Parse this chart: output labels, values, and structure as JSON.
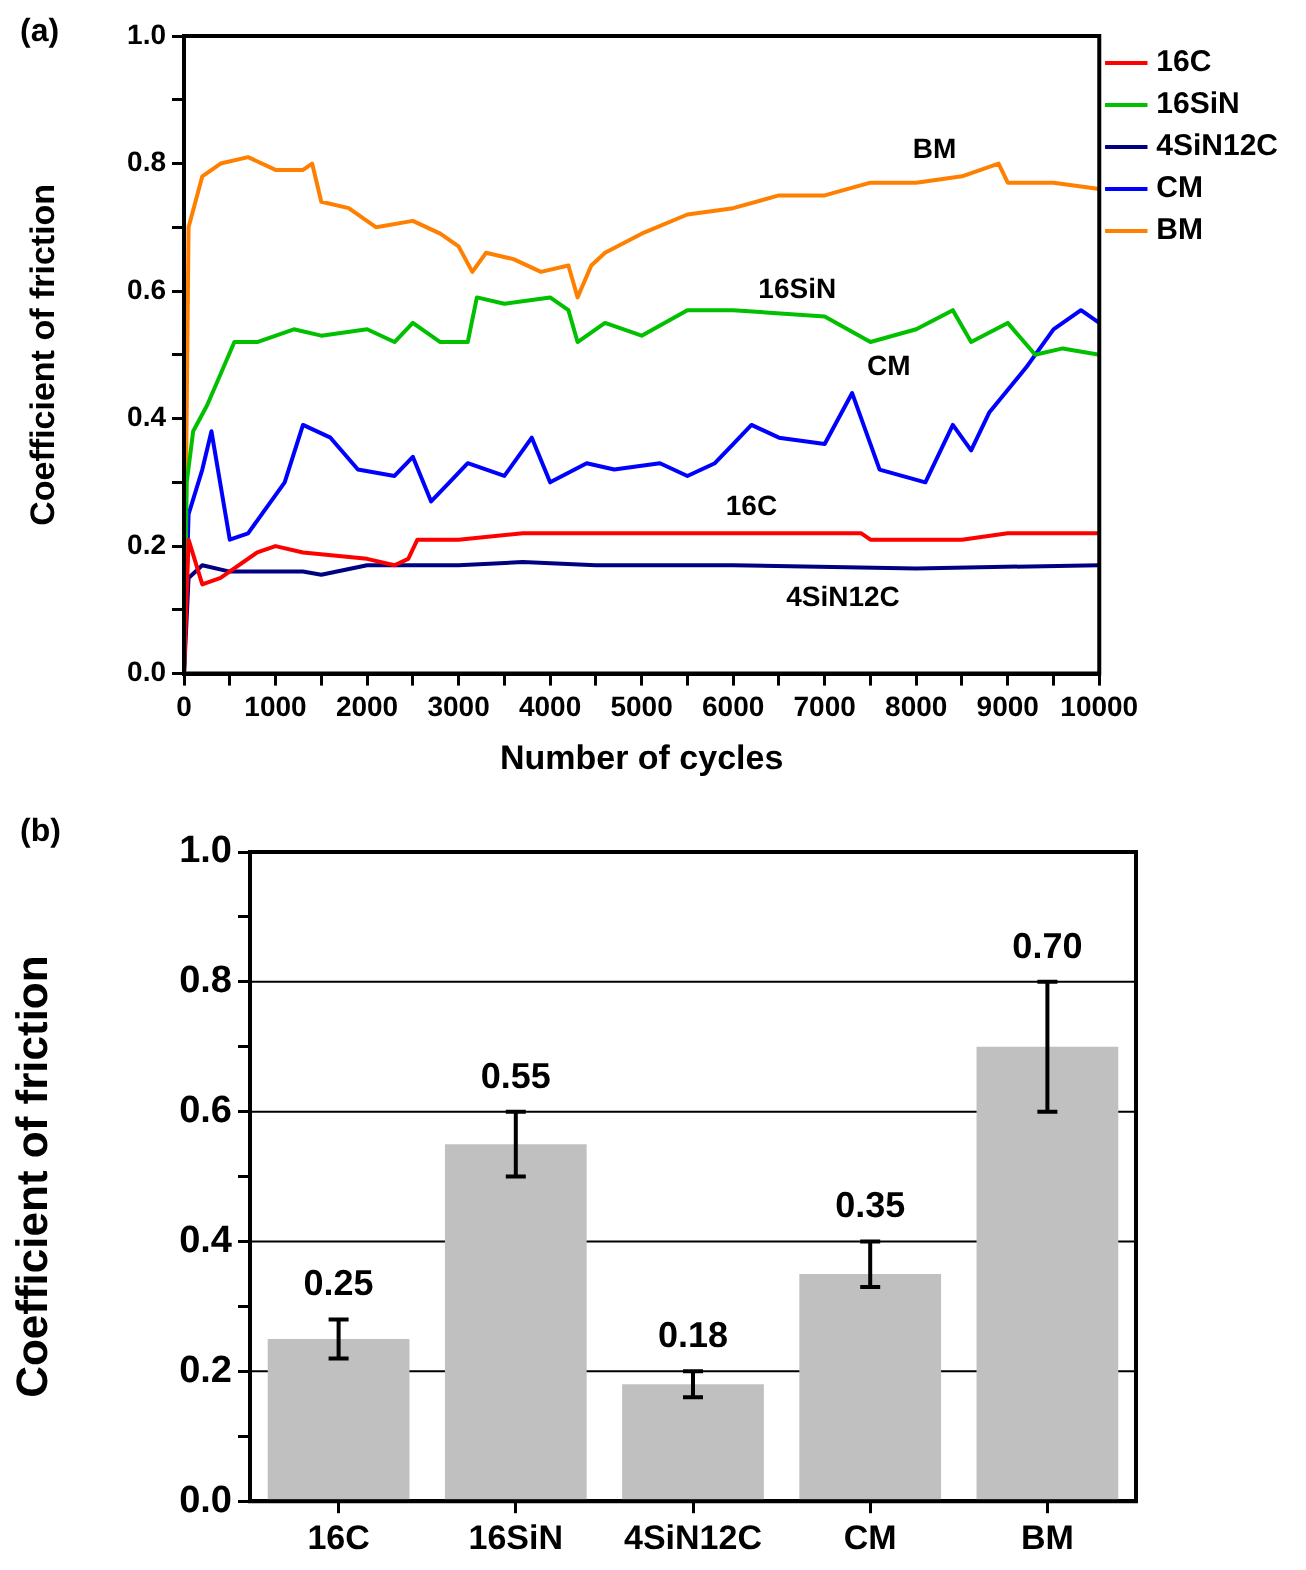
{
  "chart_data": [
    {
      "type": "line",
      "xlabel": "Number of cycles",
      "ylabel": "Coefficient of friction",
      "legend": "right",
      "marker": "none",
      "grid": false,
      "line_style": "solid",
      "xlim": [
        0,
        10000
      ],
      "ylim": [
        0,
        1
      ],
      "xticks": [
        0,
        {
          "value": 500,
          "label": null
        },
        1000,
        {
          "value": 1500,
          "label": null
        },
        2000,
        {
          "value": 2500,
          "label": null
        },
        3000,
        {
          "value": 3500,
          "label": null
        },
        4000,
        {
          "value": 4500,
          "label": null
        },
        5000,
        {
          "value": 5500,
          "label": null
        },
        6000,
        {
          "value": 6500,
          "label": null
        },
        7000,
        {
          "value": 7500,
          "label": null
        },
        8000,
        {
          "value": 8500,
          "label": null
        },
        9000,
        {
          "value": 9500,
          "label": null
        },
        10000
      ],
      "yticks": [
        {
          "value": 0,
          "label": "0.0"
        },
        {
          "value": 0.1,
          "label": null
        },
        {
          "value": 0.2,
          "label": "0.2"
        },
        {
          "value": 0.3,
          "label": null
        },
        {
          "value": 0.4,
          "label": "0.4"
        },
        {
          "value": 0.5,
          "label": null
        },
        {
          "value": 0.6,
          "label": "0.6"
        },
        {
          "value": 0.7,
          "label": null
        },
        {
          "value": 0.8,
          "label": "0.8"
        },
        {
          "value": 0.9,
          "label": null
        },
        {
          "value": 1,
          "label": "1.0"
        }
      ],
      "series": [
        {
          "name": "16C",
          "color": "#ff0000",
          "x": [
            0,
            50,
            200,
            400,
            800,
            1000,
            1300,
            2000,
            2300,
            2450,
            2550,
            3000,
            3700,
            5000,
            6000,
            7400,
            7500,
            8500,
            9000,
            10000
          ],
          "values": [
            0,
            0.21,
            0.14,
            0.15,
            0.19,
            0.2,
            0.19,
            0.18,
            0.17,
            0.18,
            0.21,
            0.21,
            0.22,
            0.22,
            0.22,
            0.22,
            0.21,
            0.21,
            0.22,
            0.22
          ]
        },
        {
          "name": "16SiN",
          "color": "#00c000",
          "x": [
            0,
            30,
            100,
            250,
            400,
            550,
            800,
            1200,
            1500,
            2000,
            2300,
            2500,
            2800,
            3100,
            3200,
            3500,
            4000,
            4200,
            4300,
            4600,
            5000,
            5500,
            6000,
            7000,
            7500,
            8000,
            8400,
            8600,
            9000,
            9300,
            9600,
            10000
          ],
          "values": [
            0,
            0.3,
            0.38,
            0.42,
            0.47,
            0.52,
            0.52,
            0.54,
            0.53,
            0.54,
            0.52,
            0.55,
            0.52,
            0.52,
            0.59,
            0.58,
            0.59,
            0.57,
            0.52,
            0.55,
            0.53,
            0.57,
            0.57,
            0.56,
            0.52,
            0.54,
            0.57,
            0.52,
            0.55,
            0.5,
            0.51,
            0.5
          ]
        },
        {
          "name": "4SiN12C",
          "color": "#000080",
          "x": [
            0,
            50,
            200,
            500,
            1300,
            1500,
            2000,
            3000,
            3700,
            4500,
            6000,
            8000,
            10000
          ],
          "values": [
            0,
            0.15,
            0.17,
            0.16,
            0.16,
            0.155,
            0.17,
            0.17,
            0.175,
            0.17,
            0.17,
            0.165,
            0.17
          ]
        },
        {
          "name": "CM",
          "color": "#0000ff",
          "x": [
            0,
            50,
            200,
            300,
            500,
            700,
            900,
            1100,
            1300,
            1600,
            1900,
            2300,
            2500,
            2700,
            2900,
            3100,
            3500,
            3800,
            4000,
            4400,
            4700,
            5200,
            5500,
            5800,
            6000,
            6200,
            6500,
            7000,
            7300,
            7600,
            8100,
            8400,
            8600,
            8800,
            9200,
            9500,
            9800,
            10000
          ],
          "values": [
            0,
            0.25,
            0.32,
            0.38,
            0.21,
            0.22,
            0.26,
            0.3,
            0.39,
            0.37,
            0.32,
            0.31,
            0.34,
            0.27,
            0.3,
            0.33,
            0.31,
            0.37,
            0.3,
            0.33,
            0.32,
            0.33,
            0.31,
            0.33,
            0.36,
            0.39,
            0.37,
            0.36,
            0.44,
            0.32,
            0.3,
            0.39,
            0.35,
            0.41,
            0.48,
            0.54,
            0.57,
            0.55
          ]
        },
        {
          "name": "BM",
          "color": "#ff8000",
          "x": [
            0,
            50,
            200,
            400,
            700,
            1000,
            1300,
            1400,
            1500,
            1800,
            2100,
            2500,
            2800,
            3000,
            3150,
            3300,
            3600,
            3900,
            4200,
            4300,
            4450,
            4600,
            5000,
            5500,
            6000,
            6500,
            7000,
            7500,
            8000,
            8500,
            8900,
            9000,
            9500,
            10000
          ],
          "values": [
            0,
            0.7,
            0.78,
            0.8,
            0.81,
            0.79,
            0.79,
            0.8,
            0.74,
            0.73,
            0.7,
            0.71,
            0.69,
            0.67,
            0.63,
            0.66,
            0.65,
            0.63,
            0.64,
            0.59,
            0.64,
            0.66,
            0.69,
            0.72,
            0.73,
            0.75,
            0.75,
            0.77,
            0.77,
            0.78,
            0.8,
            0.77,
            0.77,
            0.76
          ]
        }
      ],
      "annotations": [
        "(a)"
      ]
    },
    {
      "type": "bar",
      "ylabel": "Coefficient of friction",
      "grid": "y",
      "legend": false,
      "value_labels": [
        "0.25",
        "0.55",
        "0.18",
        "0.35",
        "0.70"
      ],
      "categories": [
        "16C",
        "16SiN",
        "4SiN12C",
        "CM",
        "BM"
      ],
      "values": [
        0.25,
        0.55,
        0.18,
        0.35,
        0.7
      ],
      "color": "#c0c0c0",
      "errors": [
        [
          0.22,
          0.28
        ],
        [
          0.5,
          0.6
        ],
        [
          0.16,
          0.2
        ],
        [
          0.33,
          0.4
        ],
        [
          0.6,
          0.8
        ]
      ],
      "ylim": [
        0,
        1
      ],
      "yticks": [
        {
          "value": 0,
          "label": "0.0"
        },
        {
          "value": 0.1,
          "label": null
        },
        {
          "value": 0.2,
          "label": "0.2"
        },
        {
          "value": 0.3,
          "label": null
        },
        {
          "value": 0.4,
          "label": "0.4"
        },
        {
          "value": 0.5,
          "label": null
        },
        {
          "value": 0.6,
          "label": "0.6"
        },
        {
          "value": 0.7,
          "label": null
        },
        {
          "value": 0.8,
          "label": "0.8"
        },
        {
          "value": 0.9,
          "label": null
        },
        {
          "value": 1,
          "label": "1.0"
        }
      ],
      "annotations": [
        "(b)"
      ]
    }
  ]
}
